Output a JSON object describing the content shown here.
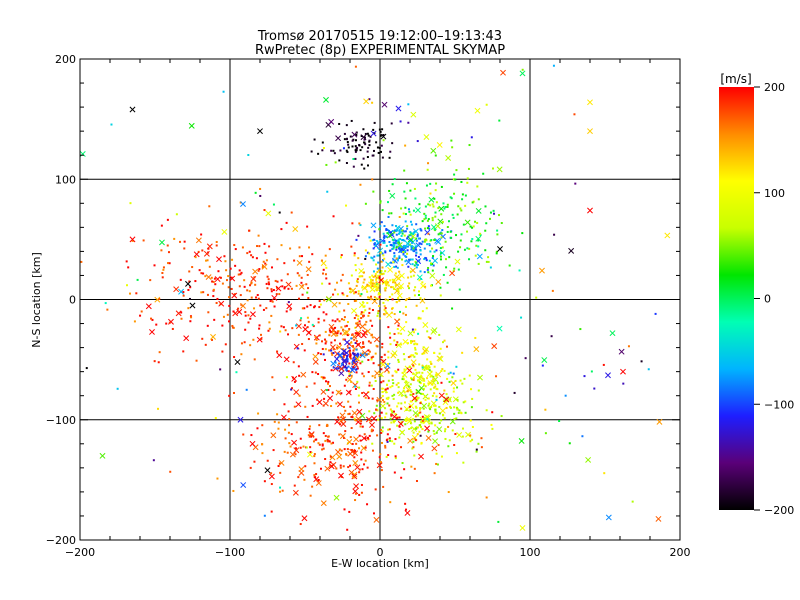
{
  "chart_data": {
    "type": "scatter",
    "title_line1": "Tromsø 20170515 19:12:00–19:13:43",
    "title_line2": "RwPretec (8p) EXPERIMENTAL SKYMAP",
    "xlabel": "E-W location [km]",
    "ylabel": "N-S location [km]",
    "xlim": [
      -200,
      200
    ],
    "ylim": [
      -200,
      200
    ],
    "xticks": [
      "−200",
      "−100",
      "0",
      "100",
      "200"
    ],
    "yticks": [
      "200",
      "100",
      "0",
      "−100",
      "−200"
    ],
    "grid": true,
    "colorbar": {
      "unit_label": "[m/s]",
      "range": [
        -200,
        200
      ],
      "tick_labels": [
        "200",
        "100",
        "0",
        "−100",
        "−200"
      ],
      "colormap": "black-purple-blue-cyan-green-yellow-red",
      "stops": [
        "#000000",
        "#5a0078",
        "#1e1eff",
        "#00b4ff",
        "#00ffb4",
        "#00e600",
        "#c8ff00",
        "#ffff00",
        "#ff8c00",
        "#ff0000"
      ]
    },
    "marker_types": [
      "dot",
      "cross"
    ],
    "clusters": [
      {
        "x": -15,
        "y": 130,
        "sx": 12,
        "sy": 8,
        "n": 90,
        "vmin": -220,
        "vmax": -170,
        "cross": 0.05
      },
      {
        "x": 15,
        "y": 45,
        "sx": 12,
        "sy": 10,
        "n": 240,
        "vmin": -110,
        "vmax": -40,
        "cross": 0.12
      },
      {
        "x": 40,
        "y": 60,
        "sx": 22,
        "sy": 25,
        "n": 220,
        "vmin": -10,
        "vmax": 70,
        "cross": 0.08
      },
      {
        "x": 0,
        "y": 10,
        "sx": 14,
        "sy": 12,
        "n": 200,
        "vmin": 80,
        "vmax": 150,
        "cross": 0.12
      },
      {
        "x": -90,
        "y": 12,
        "sx": 40,
        "sy": 28,
        "n": 320,
        "vmin": 150,
        "vmax": 220,
        "cross": 0.12
      },
      {
        "x": -20,
        "y": -35,
        "sx": 14,
        "sy": 20,
        "n": 220,
        "vmin": 140,
        "vmax": 220,
        "cross": 0.18
      },
      {
        "x": -22,
        "y": -50,
        "sx": 6,
        "sy": 7,
        "n": 60,
        "vmin": -140,
        "vmax": -80,
        "cross": 0.3
      },
      {
        "x": 25,
        "y": -60,
        "sx": 15,
        "sy": 22,
        "n": 220,
        "vmin": 60,
        "vmax": 130,
        "cross": 0.18
      },
      {
        "x": 30,
        "y": -95,
        "sx": 20,
        "sy": 18,
        "n": 200,
        "vmin": 40,
        "vmax": 110,
        "cross": 0.15
      },
      {
        "x": -25,
        "y": -115,
        "sx": 30,
        "sy": 30,
        "n": 360,
        "vmin": 150,
        "vmax": 220,
        "cross": 0.22
      },
      {
        "x": 0,
        "y": 0,
        "sx": 120,
        "sy": 120,
        "n": 220,
        "vmin": -200,
        "vmax": 200,
        "cross": 0.25
      }
    ],
    "highlighted_points": [
      {
        "x": -165,
        "y": 158,
        "v": -210
      },
      {
        "x": -80,
        "y": 140,
        "v": -210
      },
      {
        "x": 3,
        "y": 162,
        "v": -160
      },
      {
        "x": -36,
        "y": 166,
        "v": 10
      },
      {
        "x": 140,
        "y": 164,
        "v": 120
      },
      {
        "x": 95,
        "y": 188,
        "v": 0
      },
      {
        "x": 80,
        "y": 42,
        "v": -210
      },
      {
        "x": -128,
        "y": 13,
        "v": -210
      },
      {
        "x": -125,
        "y": -5,
        "v": -210
      },
      {
        "x": -95,
        "y": -52,
        "v": -210
      },
      {
        "x": -93,
        "y": -100,
        "v": -120
      },
      {
        "x": -185,
        "y": -130,
        "v": 40
      },
      {
        "x": 155,
        "y": -28,
        "v": 0
      },
      {
        "x": 152,
        "y": -63,
        "v": -120
      },
      {
        "x": 162,
        "y": -60,
        "v": 200
      },
      {
        "x": 140,
        "y": 74,
        "v": 200
      },
      {
        "x": 108,
        "y": 24,
        "v": 150
      },
      {
        "x": -165,
        "y": 50,
        "v": 200
      },
      {
        "x": -152,
        "y": -27,
        "v": 200
      },
      {
        "x": 65,
        "y": 157,
        "v": 100
      },
      {
        "x": -75,
        "y": -142,
        "v": -210
      },
      {
        "x": 95,
        "y": -190,
        "v": 100
      },
      {
        "x": -85,
        "y": -120,
        "v": 200
      },
      {
        "x": 140,
        "y": 140,
        "v": 130
      }
    ]
  }
}
